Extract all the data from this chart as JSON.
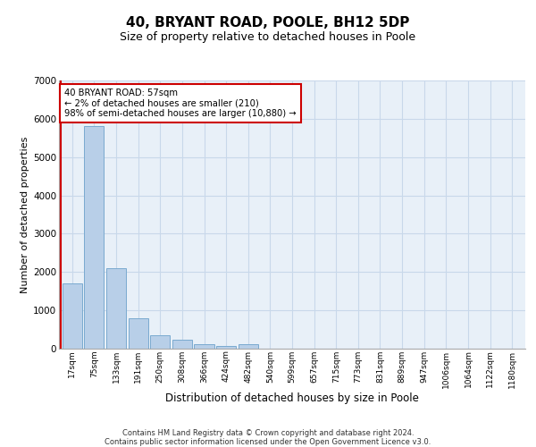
{
  "title": "40, BRYANT ROAD, POOLE, BH12 5DP",
  "subtitle": "Size of property relative to detached houses in Poole",
  "xlabel": "Distribution of detached houses by size in Poole",
  "ylabel": "Number of detached properties",
  "bar_labels": [
    "17sqm",
    "75sqm",
    "133sqm",
    "191sqm",
    "250sqm",
    "308sqm",
    "366sqm",
    "424sqm",
    "482sqm",
    "540sqm",
    "599sqm",
    "657sqm",
    "715sqm",
    "773sqm",
    "831sqm",
    "889sqm",
    "947sqm",
    "1006sqm",
    "1064sqm",
    "1122sqm",
    "1180sqm"
  ],
  "bar_values": [
    1700,
    5800,
    2100,
    800,
    350,
    230,
    120,
    70,
    120,
    0,
    0,
    0,
    0,
    0,
    0,
    0,
    0,
    0,
    0,
    0,
    0
  ],
  "bar_color": "#b8cfe8",
  "bar_edge_color": "#7aaad0",
  "annotation_box_text": "40 BRYANT ROAD: 57sqm\n← 2% of detached houses are smaller (210)\n98% of semi-detached houses are larger (10,880) →",
  "annotation_box_color": "#ffffff",
  "annotation_box_edge_color": "#cc0000",
  "red_line_x": -0.5,
  "ylim": [
    0,
    7000
  ],
  "yticks": [
    0,
    1000,
    2000,
    3000,
    4000,
    5000,
    6000,
    7000
  ],
  "grid_color": "#c8d8ea",
  "bg_color": "#e8f0f8",
  "footer": "Contains HM Land Registry data © Crown copyright and database right 2024.\nContains public sector information licensed under the Open Government Licence v3.0.",
  "title_fontsize": 11,
  "subtitle_fontsize": 9,
  "xlabel_fontsize": 8.5,
  "ylabel_fontsize": 8
}
